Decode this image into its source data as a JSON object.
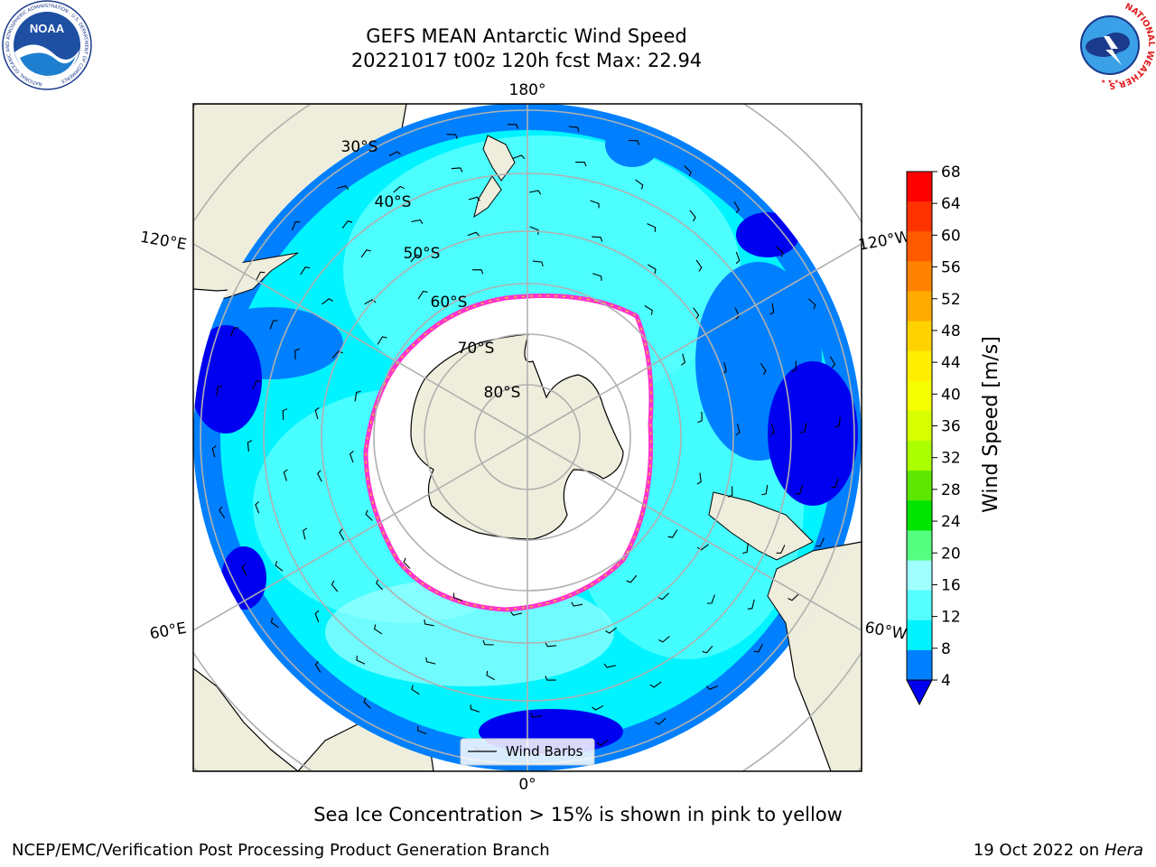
{
  "title": {
    "line1": "GEFS MEAN Antarctic Wind Speed",
    "line2": "20221017 t00z 120h fcst   Max: 22.94"
  },
  "map": {
    "lon_labels": {
      "top": "180°",
      "bottom": "0°",
      "upper_left": "120°E",
      "upper_right": "120°W",
      "lower_left": "60°E",
      "lower_right": "60°W"
    },
    "lat_labels": [
      "30°S",
      "40°S",
      "50°S",
      "60°S",
      "70°S",
      "80°S"
    ],
    "legend_label": "Wind Barbs"
  },
  "colorbar": {
    "label": "Wind Speed [m/s]",
    "ticks": [
      "68",
      "64",
      "60",
      "56",
      "52",
      "48",
      "44",
      "40",
      "36",
      "32",
      "28",
      "24",
      "20",
      "16",
      "12",
      "8",
      "4"
    ],
    "colors": [
      "#ff0000",
      "#ff3300",
      "#ff5a00",
      "#ff8200",
      "#ffaa00",
      "#ffd200",
      "#ffee00",
      "#f5ff00",
      "#d7ff00",
      "#aaff00",
      "#5ce600",
      "#00e400",
      "#55ff7f",
      "#a0ffff",
      "#55ffff",
      "#00f3ff",
      "#0080ff"
    ],
    "extend_color": "#0000f0"
  },
  "caption": "Sea Ice Concentration > 15% is shown in pink to yellow",
  "footer": {
    "left": "NCEP/EMC/Verification Post Processing Product Generation Branch",
    "right_prefix": "19 Oct 2022 on ",
    "right_machine": "Hera"
  },
  "logos": {
    "left": "NOAA",
    "left_ring": "NATIONAL OCEANIC AND ATMOSPHERIC ADMINISTRATION · U.S. DEPARTMENT OF COMMERCE",
    "right_ring": "NATIONAL WEATHER SERVICE"
  },
  "colors": {
    "ocean_light": "#55ffff",
    "ocean_cyan": "#00f3ff",
    "ocean_blue": "#0080ff",
    "ocean_deep": "#0000f0",
    "land": "#efeedc",
    "ice_edge": "#ff33cc",
    "grid": "#b0b0b0"
  }
}
